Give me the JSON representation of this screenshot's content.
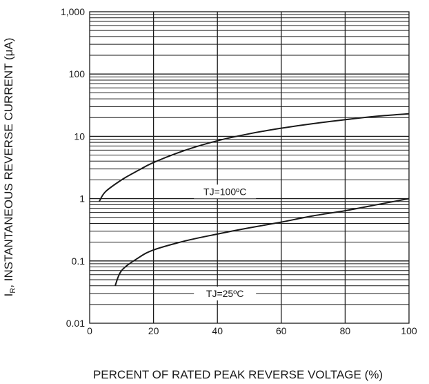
{
  "chart_data": {
    "type": "line",
    "title": "",
    "xlabel": "PERCENT OF RATED PEAK REVERSE VOLTAGE (%)",
    "ylabel_main": "I",
    "ylabel_sub": "R",
    "ylabel_rest": ", INSTANTANEOUS REVERSE CURRENT (μA)",
    "xlim": [
      0,
      100
    ],
    "ylim": [
      0.01,
      1000
    ],
    "yscale": "log",
    "grid": true,
    "x_ticks": [
      0,
      20,
      40,
      60,
      80,
      100
    ],
    "x_tick_labels": [
      "0",
      "20",
      "40",
      "60",
      "80",
      "100"
    ],
    "y_ticks": [
      0.01,
      0.1,
      1,
      10,
      100,
      1000
    ],
    "y_tick_labels": [
      "0.01",
      "0.1",
      "1",
      "10",
      "100",
      "1,000"
    ],
    "series": [
      {
        "name": "TJ=100°C",
        "label_text": "TJ=100ºC",
        "x": [
          3,
          5,
          10,
          15,
          20,
          30,
          40,
          50,
          60,
          70,
          80,
          90,
          100
        ],
        "y": [
          0.9,
          1.3,
          2.0,
          2.8,
          3.8,
          6.0,
          8.5,
          11,
          13.5,
          16,
          18.5,
          21,
          23
        ]
      },
      {
        "name": "TJ=25°C",
        "label_text": "TJ=25ºC",
        "x": [
          8,
          10,
          15,
          20,
          30,
          40,
          50,
          60,
          70,
          80,
          90,
          100
        ],
        "y": [
          0.04,
          0.07,
          0.11,
          0.15,
          0.21,
          0.27,
          0.34,
          0.42,
          0.53,
          0.64,
          0.8,
          1.0
        ]
      }
    ],
    "annotations": [
      {
        "series": 0,
        "text": "TJ=100ºC",
        "x": 40,
        "y": 1.3
      },
      {
        "series": 1,
        "text": "TJ=25ºC",
        "x": 40,
        "y": 0.03
      }
    ]
  }
}
